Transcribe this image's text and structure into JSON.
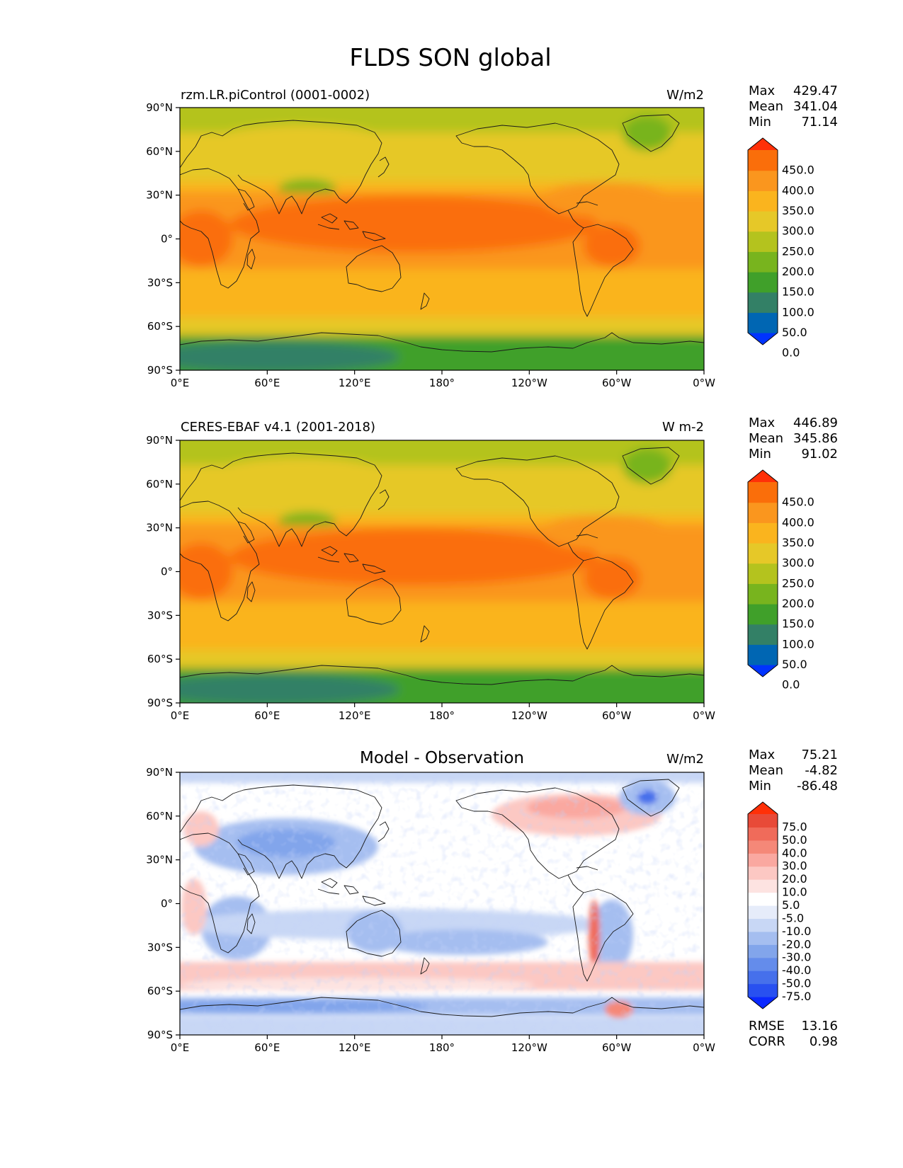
{
  "title": "FLDS SON global",
  "lat_ticks": [
    "90°N",
    "60°N",
    "30°N",
    "0°",
    "30°S",
    "60°S",
    "90°S"
  ],
  "lon_ticks": [
    "0°E",
    "60°E",
    "120°E",
    "180°",
    "120°W",
    "60°W",
    "0°W"
  ],
  "panels": [
    {
      "id": "model",
      "left_title": "rzm.LR.piControl (0001-0002)",
      "center_title": "",
      "units": "W/m2",
      "stats": [
        {
          "label": "Max",
          "value": "429.47"
        },
        {
          "label": "Mean",
          "value": "341.04"
        },
        {
          "label": "Min",
          "value": "71.14"
        }
      ],
      "colorbar": {
        "labels": [
          "450.0",
          "400.0",
          "350.0",
          "300.0",
          "250.0",
          "200.0",
          "150.0",
          "100.0",
          "50.0",
          "0.0"
        ],
        "colors": [
          "#0033ff",
          "#0066b3",
          "#338066",
          "#40a02a",
          "#78b41e",
          "#b4c31e",
          "#e6c828",
          "#fab41e",
          "#fa961e",
          "#fa6e0a",
          "#ff3008"
        ]
      },
      "footer": []
    },
    {
      "id": "obs",
      "left_title": "CERES-EBAF v4.1 (2001-2018)",
      "center_title": "",
      "units": "W m-2",
      "stats": [
        {
          "label": "Max",
          "value": "446.89"
        },
        {
          "label": "Mean",
          "value": "345.86"
        },
        {
          "label": "Min",
          "value": "91.02"
        }
      ],
      "colorbar": {
        "labels": [
          "450.0",
          "400.0",
          "350.0",
          "300.0",
          "250.0",
          "200.0",
          "150.0",
          "100.0",
          "50.0",
          "0.0"
        ],
        "colors": [
          "#0033ff",
          "#0066b3",
          "#338066",
          "#40a02a",
          "#78b41e",
          "#b4c31e",
          "#e6c828",
          "#fab41e",
          "#fa961e",
          "#fa6e0a",
          "#ff3008"
        ]
      },
      "footer": []
    },
    {
      "id": "diff",
      "left_title": "",
      "center_title": "Model - Observation",
      "units": "W/m2",
      "stats": [
        {
          "label": "Max",
          "value": "75.21"
        },
        {
          "label": "Mean",
          "value": "-4.82"
        },
        {
          "label": "Min",
          "value": "-86.48"
        }
      ],
      "colorbar": {
        "labels": [
          "75.0",
          "50.0",
          "40.0",
          "30.0",
          "20.0",
          "10.0",
          "5.0",
          "-5.0",
          "-10.0",
          "-20.0",
          "-30.0",
          "-40.0",
          "-50.0",
          "-75.0"
        ],
        "colors": [
          "#0a28ff",
          "#2850f0",
          "#4670eb",
          "#648ceb",
          "#82a5eb",
          "#a5bef0",
          "#c8d7f5",
          "#e6ecfa",
          "#ffffff",
          "#fde3e1",
          "#fcc8c3",
          "#faa8a0",
          "#f58878",
          "#f06b5a",
          "#e84a38",
          "#ff3008"
        ]
      },
      "footer": [
        {
          "label": "RMSE",
          "value": "13.16"
        },
        {
          "label": "CORR",
          "value": "0.98"
        }
      ]
    }
  ]
}
